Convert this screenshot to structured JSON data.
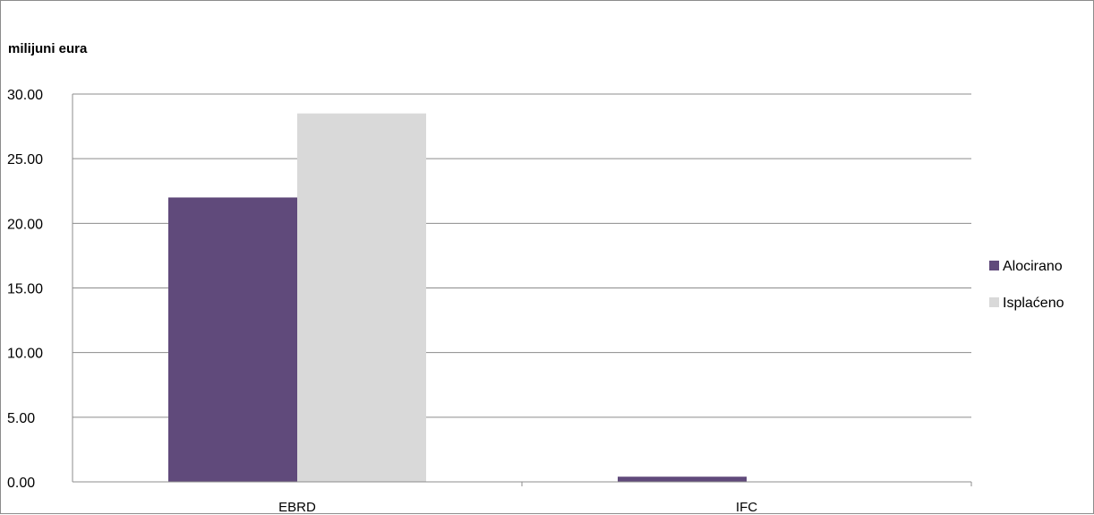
{
  "chart_data": {
    "type": "bar",
    "ylabel": "milijuni eura",
    "categories": [
      "EBRD",
      "IFC"
    ],
    "series": [
      {
        "name": "Alocirano",
        "color": "#604a7b",
        "values": [
          22.0,
          0.4
        ]
      },
      {
        "name": "Isplaćeno",
        "color": "#d9d9d9",
        "values": [
          28.5,
          0.0
        ]
      }
    ],
    "ylim": [
      0,
      30
    ],
    "yticks": [
      "0.00",
      "5.00",
      "10.00",
      "15.00",
      "20.00",
      "25.00",
      "30.00"
    ],
    "grid": true,
    "legend_position": "right"
  }
}
